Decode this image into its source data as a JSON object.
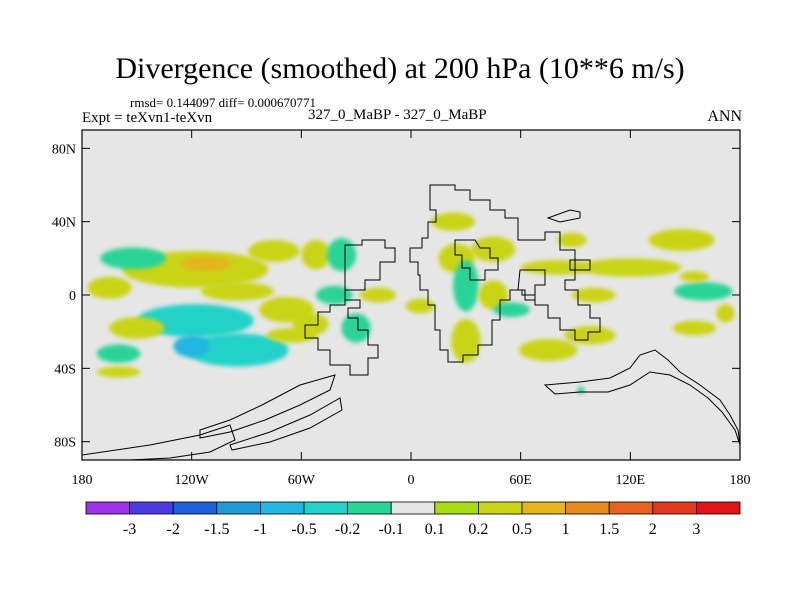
{
  "chart_data": {
    "type": "heatmap",
    "title": "Divergence (smoothed) at 200 hPa (10**6 m/s)",
    "stats_label": "rmsd= 0.144097 diff= 0.000670771",
    "expt_label": "Expt = teXvn1-teXvn",
    "case_label": "327_0_MaBP - 327_0_MaBP",
    "season": "ANN",
    "x_range": [
      -180,
      180
    ],
    "y_range": [
      -90,
      90
    ],
    "x_ticks": [
      {
        "value": -180,
        "label": "180"
      },
      {
        "value": -120,
        "label": "120W"
      },
      {
        "value": -60,
        "label": "60W"
      },
      {
        "value": 0,
        "label": "0"
      },
      {
        "value": 60,
        "label": "60E"
      },
      {
        "value": 120,
        "label": "120E"
      },
      {
        "value": 180,
        "label": "180"
      }
    ],
    "y_ticks": [
      {
        "value": 80,
        "label": "80N"
      },
      {
        "value": 40,
        "label": "40N"
      },
      {
        "value": 0,
        "label": "0"
      },
      {
        "value": -40,
        "label": "40S"
      },
      {
        "value": -80,
        "label": "80S"
      }
    ],
    "colorbar": {
      "colors": [
        "#9b32e6",
        "#4b3be0",
        "#1f5fd8",
        "#1f9ad8",
        "#22b6e0",
        "#22d2c8",
        "#2ad498",
        "#e6e6e6",
        "#a8dc14",
        "#cad418",
        "#e2b61c",
        "#e68c1e",
        "#e6641e",
        "#e23a1c",
        "#e01414"
      ],
      "labels": [
        "-3",
        "-2",
        "-1.5",
        "-1",
        "-0.5",
        "-0.2",
        "-0.1",
        "0.1",
        "0.2",
        "0.5",
        "1",
        "1.5",
        "2",
        "3"
      ]
    },
    "anomalies": [
      {
        "lon": -118,
        "lat": 14,
        "rlon": 40,
        "rlat": 10,
        "value": 0.3
      },
      {
        "lon": -112,
        "lat": 17,
        "rlon": 14,
        "rlat": 4,
        "value": 0.8
      },
      {
        "lon": -152,
        "lat": 20,
        "rlon": 18,
        "rlat": 6,
        "value": -0.15
      },
      {
        "lon": -165,
        "lat": 4,
        "rlon": 12,
        "rlat": 6,
        "value": 0.3
      },
      {
        "lon": -75,
        "lat": 24,
        "rlon": 14,
        "rlat": 6,
        "value": 0.3
      },
      {
        "lon": -52,
        "lat": 22,
        "rlon": 8,
        "rlat": 8,
        "value": 0.25
      },
      {
        "lon": -38,
        "lat": 22,
        "rlon": 8,
        "rlat": 9,
        "value": -0.15
      },
      {
        "lon": -95,
        "lat": 2,
        "rlon": 20,
        "rlat": 5,
        "value": 0.3
      },
      {
        "lon": -118,
        "lat": -14,
        "rlon": 32,
        "rlat": 9,
        "value": -0.3
      },
      {
        "lon": -95,
        "lat": -30,
        "rlon": 28,
        "rlat": 9,
        "value": -0.3
      },
      {
        "lon": -120,
        "lat": -28,
        "rlon": 10,
        "rlat": 6,
        "value": -0.6
      },
      {
        "lon": -150,
        "lat": -18,
        "rlon": 15,
        "rlat": 6,
        "value": 0.3
      },
      {
        "lon": -160,
        "lat": -32,
        "rlon": 12,
        "rlat": 5,
        "value": -0.15
      },
      {
        "lon": -160,
        "lat": -42,
        "rlon": 12,
        "rlat": 3,
        "value": 0.3
      },
      {
        "lon": -68,
        "lat": -8,
        "rlon": 15,
        "rlat": 7,
        "value": 0.3
      },
      {
        "lon": -55,
        "lat": -16,
        "rlon": 10,
        "rlat": 6,
        "value": 0.3
      },
      {
        "lon": -65,
        "lat": -22,
        "rlon": 14,
        "rlat": 4,
        "value": 0.3
      },
      {
        "lon": -42,
        "lat": 0,
        "rlon": 10,
        "rlat": 5,
        "value": -0.15
      },
      {
        "lon": -30,
        "lat": -18,
        "rlon": 8,
        "rlat": 8,
        "value": -0.15
      },
      {
        "lon": -18,
        "lat": 0,
        "rlon": 10,
        "rlat": 4,
        "value": 0.25
      },
      {
        "lon": 5,
        "lat": -6,
        "rlon": 8,
        "rlat": 4,
        "value": 0.25
      },
      {
        "lon": 23,
        "lat": 40,
        "rlon": 12,
        "rlat": 5,
        "value": 0.25
      },
      {
        "lon": 25,
        "lat": 20,
        "rlon": 10,
        "rlat": 8,
        "value": 0.3
      },
      {
        "lon": 45,
        "lat": 25,
        "rlon": 12,
        "rlat": 7,
        "value": 0.25
      },
      {
        "lon": 30,
        "lat": 5,
        "rlon": 7,
        "rlat": 14,
        "value": -0.15
      },
      {
        "lon": 45,
        "lat": 0,
        "rlon": 8,
        "rlat": 8,
        "value": 0.3
      },
      {
        "lon": 30,
        "lat": -25,
        "rlon": 8,
        "rlat": 12,
        "value": 0.3
      },
      {
        "lon": 55,
        "lat": -8,
        "rlon": 10,
        "rlat": 4,
        "value": -0.15
      },
      {
        "lon": 75,
        "lat": -30,
        "rlon": 16,
        "rlat": 6,
        "value": 0.3
      },
      {
        "lon": 98,
        "lat": -22,
        "rlon": 14,
        "rlat": 5,
        "value": 0.3
      },
      {
        "lon": 80,
        "lat": 15,
        "rlon": 20,
        "rlat": 4,
        "value": 0.25
      },
      {
        "lon": 120,
        "lat": 15,
        "rlon": 28,
        "rlat": 5,
        "value": 0.25
      },
      {
        "lon": 148,
        "lat": 30,
        "rlon": 18,
        "rlat": 6,
        "value": 0.3
      },
      {
        "lon": 160,
        "lat": 2,
        "rlon": 16,
        "rlat": 5,
        "value": -0.15
      },
      {
        "lon": 100,
        "lat": 0,
        "rlon": 12,
        "rlat": 4,
        "value": 0.25
      },
      {
        "lon": 155,
        "lat": -18,
        "rlon": 12,
        "rlat": 4,
        "value": 0.3
      },
      {
        "lon": 172,
        "lat": -10,
        "rlon": 5,
        "rlat": 5,
        "value": 0.5
      },
      {
        "lon": 155,
        "lat": 10,
        "rlon": 8,
        "rlat": 3,
        "value": 0.3
      },
      {
        "lon": 88,
        "lat": 30,
        "rlon": 8,
        "rlat": 4,
        "value": 0.25
      },
      {
        "lon": 93,
        "lat": -52,
        "rlon": 2,
        "rlat": 2,
        "value": -0.15
      }
    ]
  }
}
